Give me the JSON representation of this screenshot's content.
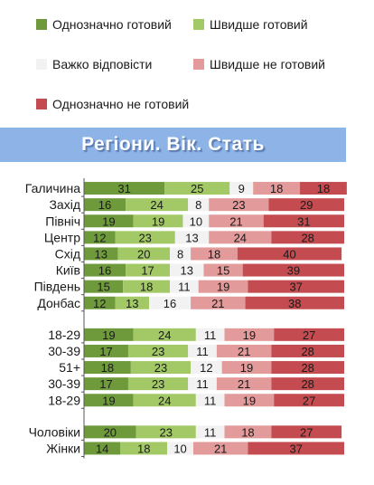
{
  "colors": {
    "definitely_ready": "#6e9a3c",
    "rather_ready": "#a3c966",
    "hard_to_say": "#f2f2f2",
    "rather_not_ready": "#e39a9a",
    "definitely_not_ready": "#c44b4f",
    "banner": "#8eb3e6"
  },
  "legend": {
    "items": [
      {
        "label": "Однозначно готовий"
      },
      {
        "label": "Швидше готовий"
      },
      {
        "label": "Важко відповісти"
      },
      {
        "label": "Швидше не готовий"
      },
      {
        "label": "Однозначно не готовий"
      }
    ]
  },
  "banner": {
    "title": "Регіони. Вік. Стать"
  },
  "chart_data": {
    "type": "bar",
    "stacked": true,
    "orientation": "horizontal",
    "title": "Регіони. Вік. Стать",
    "xlim": [
      0,
      100
    ],
    "grid": false,
    "legend_position": "top",
    "groups": [
      {
        "categories": [
          "Галичина",
          "Захід",
          "Північ",
          "Центр",
          "Схід",
          "Київ",
          "Південь",
          "Донбас"
        ],
        "series": [
          {
            "name": "Однозначно готовий",
            "values": [
              31,
              16,
              19,
              12,
              13,
              16,
              15,
              12
            ]
          },
          {
            "name": "Швидше готовий",
            "values": [
              25,
              24,
              19,
              23,
              20,
              17,
              18,
              13
            ]
          },
          {
            "name": "Важко відповісти",
            "values": [
              9,
              8,
              10,
              13,
              8,
              13,
              11,
              16
            ]
          },
          {
            "name": "Швидше не готовий",
            "values": [
              18,
              23,
              21,
              24,
              18,
              15,
              19,
              21
            ]
          },
          {
            "name": "Однозначно не готовий",
            "values": [
              18,
              29,
              31,
              28,
              40,
              39,
              37,
              38
            ]
          }
        ]
      },
      {
        "categories": [
          "18-29",
          "30-39",
          "51+",
          "30-39",
          "18-29"
        ],
        "series": [
          {
            "name": "Однозначно готовий",
            "values": [
              19,
              17,
              18,
              17,
              19
            ]
          },
          {
            "name": "Швидше готовий",
            "values": [
              24,
              23,
              23,
              23,
              24
            ]
          },
          {
            "name": "Важко відповісти",
            "values": [
              11,
              11,
              12,
              11,
              11
            ]
          },
          {
            "name": "Швидше не готовий",
            "values": [
              19,
              21,
              19,
              21,
              19
            ]
          },
          {
            "name": "Однозначно не готовий",
            "values": [
              27,
              28,
              28,
              28,
              27
            ]
          }
        ]
      },
      {
        "categories": [
          "Чоловіки",
          "Жінки"
        ],
        "series": [
          {
            "name": "Однозначно готовий",
            "values": [
              20,
              14
            ]
          },
          {
            "name": "Швидше готовий",
            "values": [
              23,
              18
            ]
          },
          {
            "name": "Важко відповісти",
            "values": [
              11,
              10
            ]
          },
          {
            "name": "Швидше не готовий",
            "values": [
              18,
              21
            ]
          },
          {
            "name": "Однозначно не готовий",
            "values": [
              27,
              37
            ]
          }
        ]
      }
    ]
  }
}
